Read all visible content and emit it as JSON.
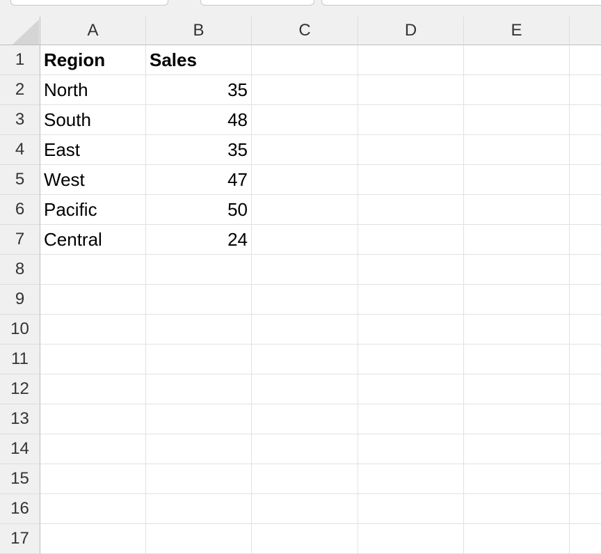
{
  "columns": [
    "A",
    "B",
    "C",
    "D",
    "E",
    ""
  ],
  "rows": [
    [
      "Region",
      "Sales"
    ],
    [
      "North",
      "35"
    ],
    [
      "South",
      "48"
    ],
    [
      "East",
      "35"
    ],
    [
      "West",
      "47"
    ],
    [
      "Pacific",
      "50"
    ],
    [
      "Central",
      "24"
    ],
    [
      "",
      ""
    ],
    [
      "",
      ""
    ],
    [
      "",
      ""
    ],
    [
      "",
      ""
    ],
    [
      "",
      ""
    ],
    [
      "",
      ""
    ],
    [
      "",
      ""
    ],
    [
      "",
      ""
    ],
    [
      "",
      ""
    ],
    [
      "",
      ""
    ]
  ]
}
